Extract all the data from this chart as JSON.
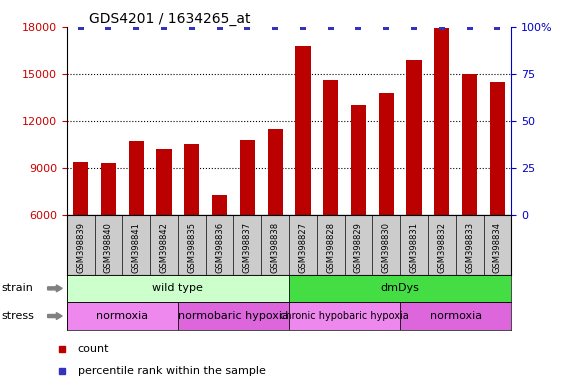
{
  "title": "GDS4201 / 1634265_at",
  "samples": [
    "GSM398839",
    "GSM398840",
    "GSM398841",
    "GSM398842",
    "GSM398835",
    "GSM398836",
    "GSM398837",
    "GSM398838",
    "GSM398827",
    "GSM398828",
    "GSM398829",
    "GSM398830",
    "GSM398831",
    "GSM398832",
    "GSM398833",
    "GSM398834"
  ],
  "counts": [
    9400,
    9300,
    10700,
    10200,
    10500,
    7300,
    10800,
    11500,
    16800,
    14600,
    13000,
    13800,
    15900,
    17900,
    15000,
    14500
  ],
  "ylim_left": [
    6000,
    18000
  ],
  "ylim_right": [
    0,
    100
  ],
  "yticks_left": [
    6000,
    9000,
    12000,
    15000,
    18000
  ],
  "yticks_right": [
    0,
    25,
    50,
    75,
    100
  ],
  "bar_color": "#bb0000",
  "dot_color": "#3333bb",
  "strain_labels": [
    {
      "text": "wild type",
      "start": 0,
      "end": 8,
      "color": "#ccffcc"
    },
    {
      "text": "dmDys",
      "start": 8,
      "end": 16,
      "color": "#44dd44"
    }
  ],
  "stress_labels": [
    {
      "text": "normoxia",
      "start": 0,
      "end": 4,
      "color": "#ee88ee"
    },
    {
      "text": "normobaric hypoxia",
      "start": 4,
      "end": 8,
      "color": "#dd66dd"
    },
    {
      "text": "chronic hypobaric hypoxia",
      "start": 8,
      "end": 12,
      "color": "#ee88ee"
    },
    {
      "text": "normoxia",
      "start": 12,
      "end": 16,
      "color": "#dd66dd"
    }
  ],
  "left_color": "#cc0000",
  "right_color": "#0000cc",
  "tick_label_bg": "#cccccc",
  "stress_font_sizes": [
    8,
    8,
    7,
    8
  ]
}
